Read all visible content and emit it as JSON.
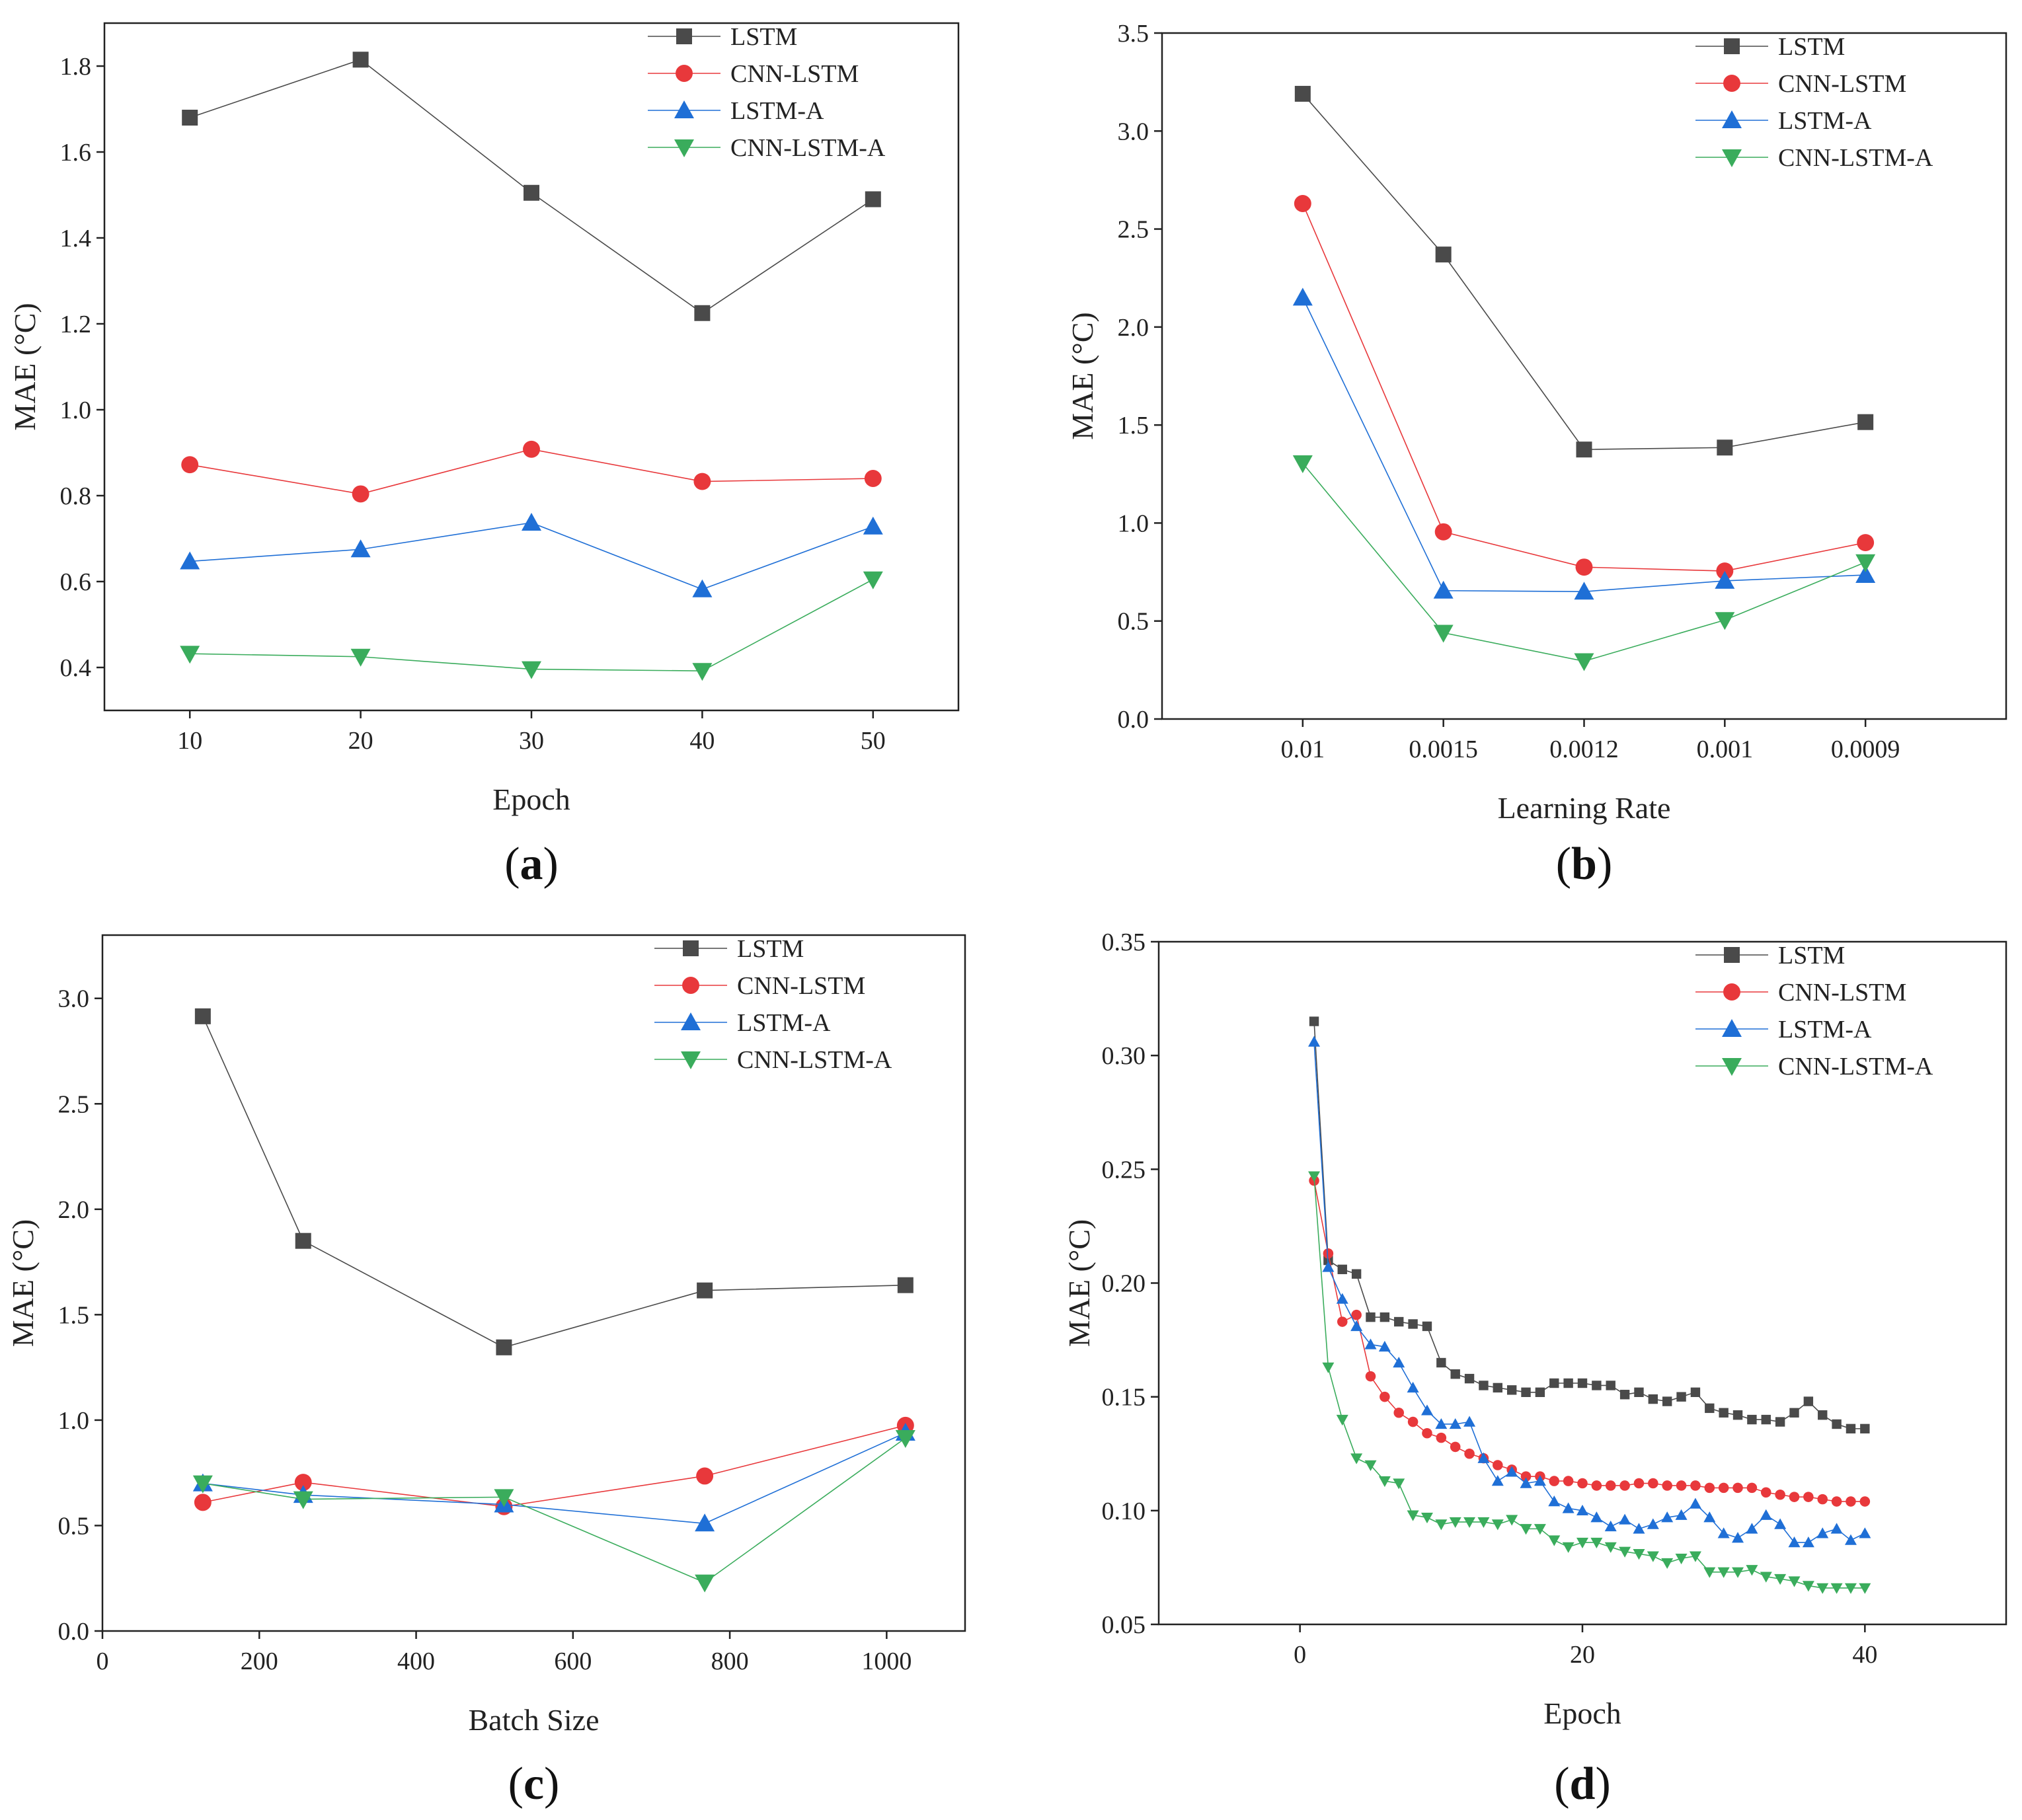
{
  "colors": {
    "LSTM": "#4a4a4a",
    "CNN-LSTM": "#e8383b",
    "LSTM-A": "#1f6fd6",
    "CNN-LSTM-A": "#3aac5c"
  },
  "chart_data": [
    {
      "id": "a",
      "panel_label": "a",
      "type": "line",
      "x_scale": "linear",
      "xlabel": "Epoch",
      "ylabel": "MAE (°C)",
      "xlim": [
        5,
        55
      ],
      "ylim": [
        0.3,
        1.9
      ],
      "xticks": [
        10,
        20,
        30,
        40,
        50
      ],
      "xtick_labels": [
        "10",
        "20",
        "30",
        "40",
        "50"
      ],
      "yticks": [
        0.4,
        0.6,
        0.8,
        1.0,
        1.2,
        1.4,
        1.6,
        1.8
      ],
      "ytick_labels": [
        "0.4",
        "0.6",
        "0.8",
        "1.0",
        "1.2",
        "1.4",
        "1.6",
        "1.8"
      ],
      "marker_size": 1.0,
      "legend": "top-right",
      "x": [
        10,
        20,
        30,
        40,
        50
      ],
      "series": [
        {
          "name": "LSTM",
          "marker": "square",
          "values": [
            1.68,
            1.815,
            1.505,
            1.225,
            1.49
          ]
        },
        {
          "name": "CNN-LSTM",
          "marker": "circle",
          "values": [
            0.872,
            0.804,
            0.908,
            0.833,
            0.84
          ]
        },
        {
          "name": "LSTM-A",
          "marker": "triangle-up",
          "values": [
            0.647,
            0.675,
            0.737,
            0.582,
            0.728
          ]
        },
        {
          "name": "CNN-LSTM-A",
          "marker": "triangle-down",
          "values": [
            0.432,
            0.425,
            0.396,
            0.392,
            0.605
          ]
        }
      ]
    },
    {
      "id": "b",
      "panel_label": "b",
      "type": "line",
      "x_scale": "category",
      "xlabel": "Learning Rate",
      "ylabel": "MAE (°C)",
      "categories": [
        "0.01",
        "0.0015",
        "0.0012",
        "0.001",
        "0.0009"
      ],
      "ylim": [
        0,
        3.5
      ],
      "yticks": [
        0,
        0.5,
        1.0,
        1.5,
        2.0,
        2.5,
        3.0,
        3.5
      ],
      "ytick_labels": [
        "0.0",
        "0.5",
        "1.0",
        "1.5",
        "2.0",
        "2.5",
        "3.0",
        "3.5"
      ],
      "marker_size": 1.0,
      "legend": "top-right",
      "series": [
        {
          "name": "LSTM",
          "marker": "square",
          "values": [
            3.19,
            2.37,
            1.375,
            1.385,
            1.515
          ]
        },
        {
          "name": "CNN-LSTM",
          "marker": "circle",
          "values": [
            2.63,
            0.955,
            0.775,
            0.755,
            0.9
          ]
        },
        {
          "name": "LSTM-A",
          "marker": "triangle-up",
          "values": [
            2.15,
            0.655,
            0.65,
            0.705,
            0.735
          ]
        },
        {
          "name": "CNN-LSTM-A",
          "marker": "triangle-down",
          "values": [
            1.305,
            0.44,
            0.295,
            0.505,
            0.8
          ]
        }
      ]
    },
    {
      "id": "c",
      "panel_label": "c",
      "type": "line",
      "x_scale": "linear",
      "xlabel": "Batch Size",
      "ylabel": "MAE (°C)",
      "xlim": [
        0,
        1100
      ],
      "ylim": [
        0,
        3.3
      ],
      "xticks": [
        0,
        200,
        400,
        600,
        800,
        1000
      ],
      "xtick_labels": [
        "0",
        "200",
        "400",
        "600",
        "800",
        "1000"
      ],
      "yticks": [
        0,
        0.5,
        1.0,
        1.5,
        2.0,
        2.5,
        3.0
      ],
      "ytick_labels": [
        "0.0",
        "0.5",
        "1.0",
        "1.5",
        "2.0",
        "2.5",
        "3.0"
      ],
      "marker_size": 1.0,
      "legend": "top-right",
      "x": [
        128,
        256,
        512,
        768,
        1024
      ],
      "series": [
        {
          "name": "LSTM",
          "marker": "square",
          "values": [
            2.915,
            1.85,
            1.345,
            1.615,
            1.64
          ]
        },
        {
          "name": "CNN-LSTM",
          "marker": "circle",
          "values": [
            0.61,
            0.705,
            0.59,
            0.735,
            0.975
          ]
        },
        {
          "name": "LSTM-A",
          "marker": "triangle-up",
          "values": [
            0.7,
            0.645,
            0.6,
            0.51,
            0.94
          ]
        },
        {
          "name": "CNN-LSTM-A",
          "marker": "triangle-down",
          "values": [
            0.7,
            0.625,
            0.635,
            0.23,
            0.915
          ]
        }
      ]
    },
    {
      "id": "d",
      "panel_label": "d",
      "type": "line",
      "x_scale": "linear",
      "xlabel": "Epoch",
      "ylabel": "MAE (°C)",
      "xlim": [
        -10,
        50
      ],
      "ylim": [
        0.05,
        0.35
      ],
      "xticks": [
        0,
        20,
        40
      ],
      "xtick_labels": [
        "0",
        "20",
        "40"
      ],
      "yticks": [
        0.05,
        0.1,
        0.15,
        0.2,
        0.25,
        0.3,
        0.35
      ],
      "ytick_labels": [
        "0.05",
        "0.10",
        "0.15",
        "0.20",
        "0.25",
        "0.30",
        "0.35"
      ],
      "marker_size": 0.6,
      "legend": "top-right",
      "x": [
        1,
        2,
        3,
        4,
        5,
        6,
        7,
        8,
        9,
        10,
        11,
        12,
        13,
        14,
        15,
        16,
        17,
        18,
        19,
        20,
        21,
        22,
        23,
        24,
        25,
        26,
        27,
        28,
        29,
        30,
        31,
        32,
        33,
        34,
        35,
        36,
        37,
        38,
        39,
        40
      ],
      "series": [
        {
          "name": "LSTM",
          "marker": "square",
          "values": [
            0.315,
            0.21,
            0.206,
            0.204,
            0.185,
            0.185,
            0.183,
            0.182,
            0.181,
            0.165,
            0.16,
            0.158,
            0.155,
            0.154,
            0.153,
            0.152,
            0.152,
            0.156,
            0.156,
            0.156,
            0.155,
            0.155,
            0.151,
            0.152,
            0.149,
            0.148,
            0.15,
            0.152,
            0.145,
            0.143,
            0.142,
            0.14,
            0.14,
            0.139,
            0.143,
            0.148,
            0.142,
            0.138,
            0.136,
            0.136
          ]
        },
        {
          "name": "CNN-LSTM",
          "marker": "circle",
          "values": [
            0.245,
            0.213,
            0.183,
            0.186,
            0.159,
            0.15,
            0.143,
            0.139,
            0.134,
            0.132,
            0.128,
            0.125,
            0.123,
            0.12,
            0.118,
            0.115,
            0.115,
            0.113,
            0.113,
            0.112,
            0.111,
            0.111,
            0.111,
            0.112,
            0.112,
            0.111,
            0.111,
            0.111,
            0.11,
            0.11,
            0.11,
            0.11,
            0.108,
            0.107,
            0.106,
            0.106,
            0.105,
            0.104,
            0.104,
            0.104
          ]
        },
        {
          "name": "LSTM-A",
          "marker": "triangle-up",
          "values": [
            0.306,
            0.207,
            0.193,
            0.181,
            0.173,
            0.172,
            0.165,
            0.154,
            0.144,
            0.138,
            0.138,
            0.139,
            0.123,
            0.113,
            0.117,
            0.112,
            0.113,
            0.104,
            0.101,
            0.1,
            0.097,
            0.093,
            0.096,
            0.092,
            0.094,
            0.097,
            0.098,
            0.103,
            0.097,
            0.09,
            0.088,
            0.092,
            0.098,
            0.094,
            0.086,
            0.086,
            0.09,
            0.092,
            0.087,
            0.09
          ]
        },
        {
          "name": "CNN-LSTM-A",
          "marker": "triangle-down",
          "values": [
            0.247,
            0.163,
            0.14,
            0.123,
            0.12,
            0.113,
            0.112,
            0.098,
            0.097,
            0.094,
            0.095,
            0.095,
            0.095,
            0.094,
            0.096,
            0.092,
            0.092,
            0.087,
            0.084,
            0.086,
            0.086,
            0.084,
            0.082,
            0.081,
            0.08,
            0.077,
            0.079,
            0.08,
            0.073,
            0.073,
            0.073,
            0.074,
            0.071,
            0.07,
            0.069,
            0.067,
            0.066,
            0.066,
            0.066,
            0.066
          ]
        }
      ]
    }
  ]
}
